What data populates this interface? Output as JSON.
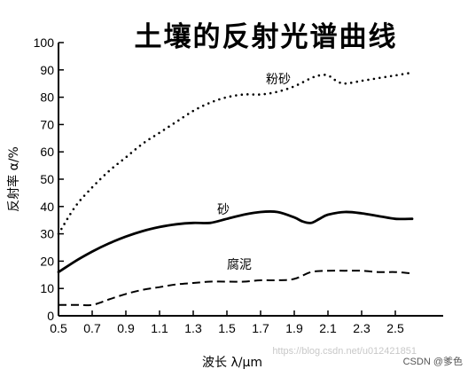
{
  "chart_data": {
    "type": "line",
    "title": "土壤的反射光谱曲线",
    "xlabel": "波长 λ/μm",
    "ylabel": "反射率 α/%",
    "xlim": [
      0.5,
      2.6
    ],
    "ylim": [
      0,
      100
    ],
    "xticks": [
      "0.5",
      "0.7",
      "0.9",
      "1.1",
      "1.3",
      "1.5",
      "1.7",
      "1.9",
      "2.1",
      "2.3",
      "2.5"
    ],
    "yticks": [
      "0",
      "10",
      "20",
      "30",
      "40",
      "50",
      "60",
      "70",
      "80",
      "90",
      "100"
    ],
    "grid": false,
    "series": [
      {
        "name": "粉砂",
        "style": "dotted",
        "x": [
          0.5,
          0.6,
          0.7,
          0.8,
          0.9,
          1.0,
          1.1,
          1.2,
          1.3,
          1.4,
          1.5,
          1.6,
          1.7,
          1.8,
          1.9,
          2.0,
          2.05,
          2.1,
          2.15,
          2.2,
          2.3,
          2.4,
          2.5,
          2.6
        ],
        "y": [
          30,
          40,
          47,
          53,
          58,
          63,
          67,
          71,
          75,
          78,
          80,
          81,
          81,
          82,
          84,
          87,
          88,
          88,
          86,
          85,
          86,
          87,
          88,
          89
        ]
      },
      {
        "name": "砂",
        "style": "solid",
        "x": [
          0.5,
          0.6,
          0.7,
          0.8,
          0.9,
          1.0,
          1.1,
          1.2,
          1.3,
          1.4,
          1.5,
          1.6,
          1.7,
          1.8,
          1.9,
          1.95,
          2.0,
          2.05,
          2.1,
          2.2,
          2.3,
          2.4,
          2.5,
          2.6
        ],
        "y": [
          16,
          20,
          23.5,
          26.5,
          29,
          31,
          32.5,
          33.5,
          34,
          34,
          35.5,
          37,
          38,
          38,
          36,
          34.5,
          34,
          35.5,
          37,
          38,
          37.5,
          36.5,
          35.5,
          35.5
        ]
      },
      {
        "name": "腐泥",
        "style": "dashed",
        "x": [
          0.5,
          0.6,
          0.7,
          0.8,
          0.9,
          1.0,
          1.1,
          1.2,
          1.3,
          1.4,
          1.5,
          1.6,
          1.7,
          1.8,
          1.9,
          2.0,
          2.1,
          2.2,
          2.3,
          2.4,
          2.5,
          2.6
        ],
        "y": [
          4,
          4,
          4,
          6,
          8,
          9.5,
          10.5,
          11.5,
          12,
          12.5,
          12.5,
          12.5,
          13,
          13,
          13.5,
          16,
          16.5,
          16.5,
          16.5,
          16,
          16,
          15.5
        ]
      }
    ]
  },
  "watermark": "https://blog.csdn.net/u012421851",
  "brand": "CSDN @爹色"
}
